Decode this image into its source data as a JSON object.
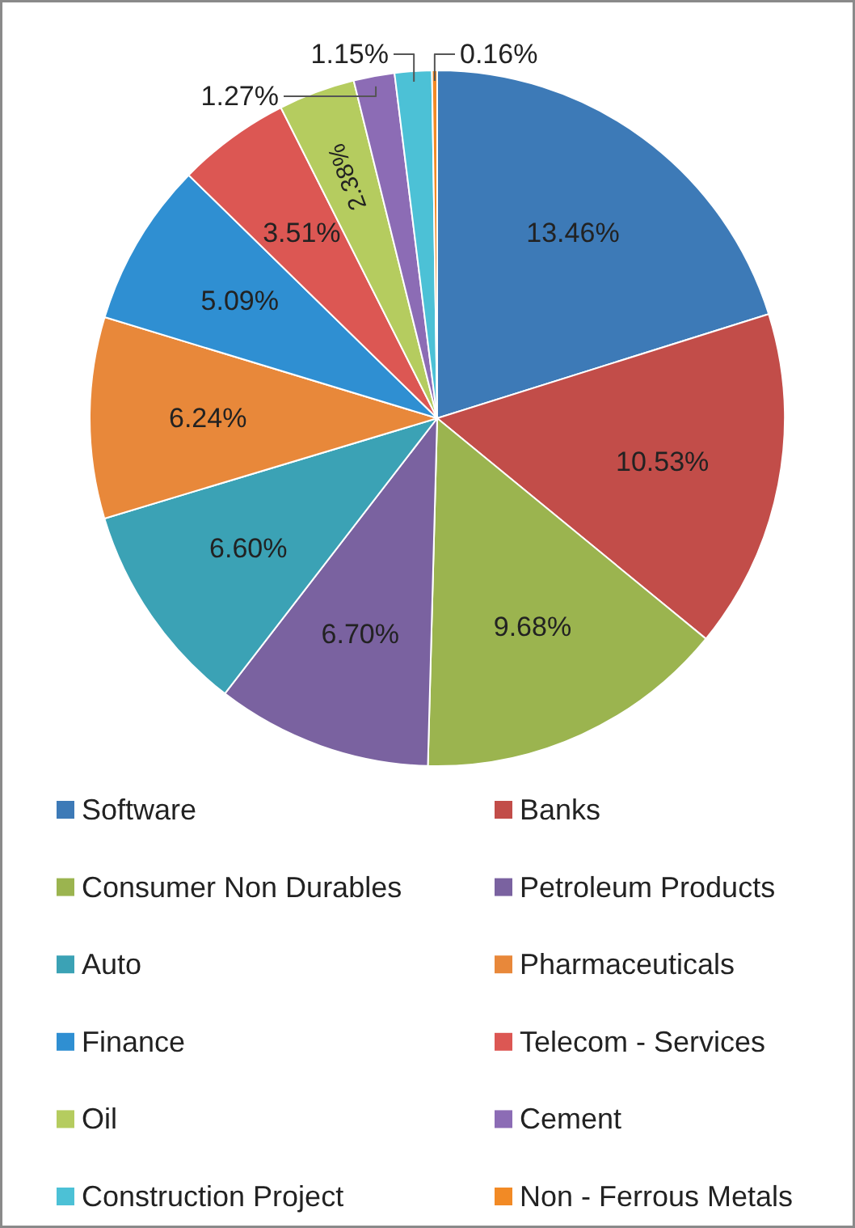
{
  "chart_data": {
    "type": "pie",
    "categories": [
      "Software",
      "Banks",
      "Consumer Non Durables",
      "Petroleum Products",
      "Auto",
      "Pharmaceuticals",
      "Finance",
      "Telecom - Services",
      "Oil",
      "Cement",
      "Construction Project",
      "Non - Ferrous Metals"
    ],
    "values": [
      13.46,
      10.53,
      9.68,
      6.7,
      6.6,
      6.24,
      5.09,
      3.51,
      2.38,
      1.27,
      1.15,
      0.16
    ],
    "value_labels": [
      "13.46%",
      "10.53%",
      "9.68%",
      "6.70%",
      "6.60%",
      "6.24%",
      "5.09%",
      "3.51%",
      "2.38%",
      "1.27%",
      "1.15%",
      "0.16%"
    ],
    "colors": [
      "#3d7ab7",
      "#c24d49",
      "#9bb44f",
      "#7a62a0",
      "#3ba2b5",
      "#e8883a",
      "#2f8fd2",
      "#dc5753",
      "#b5cc5f",
      "#8c6cb5",
      "#4cc1d6",
      "#f28a25"
    ],
    "legend": "bottom"
  }
}
